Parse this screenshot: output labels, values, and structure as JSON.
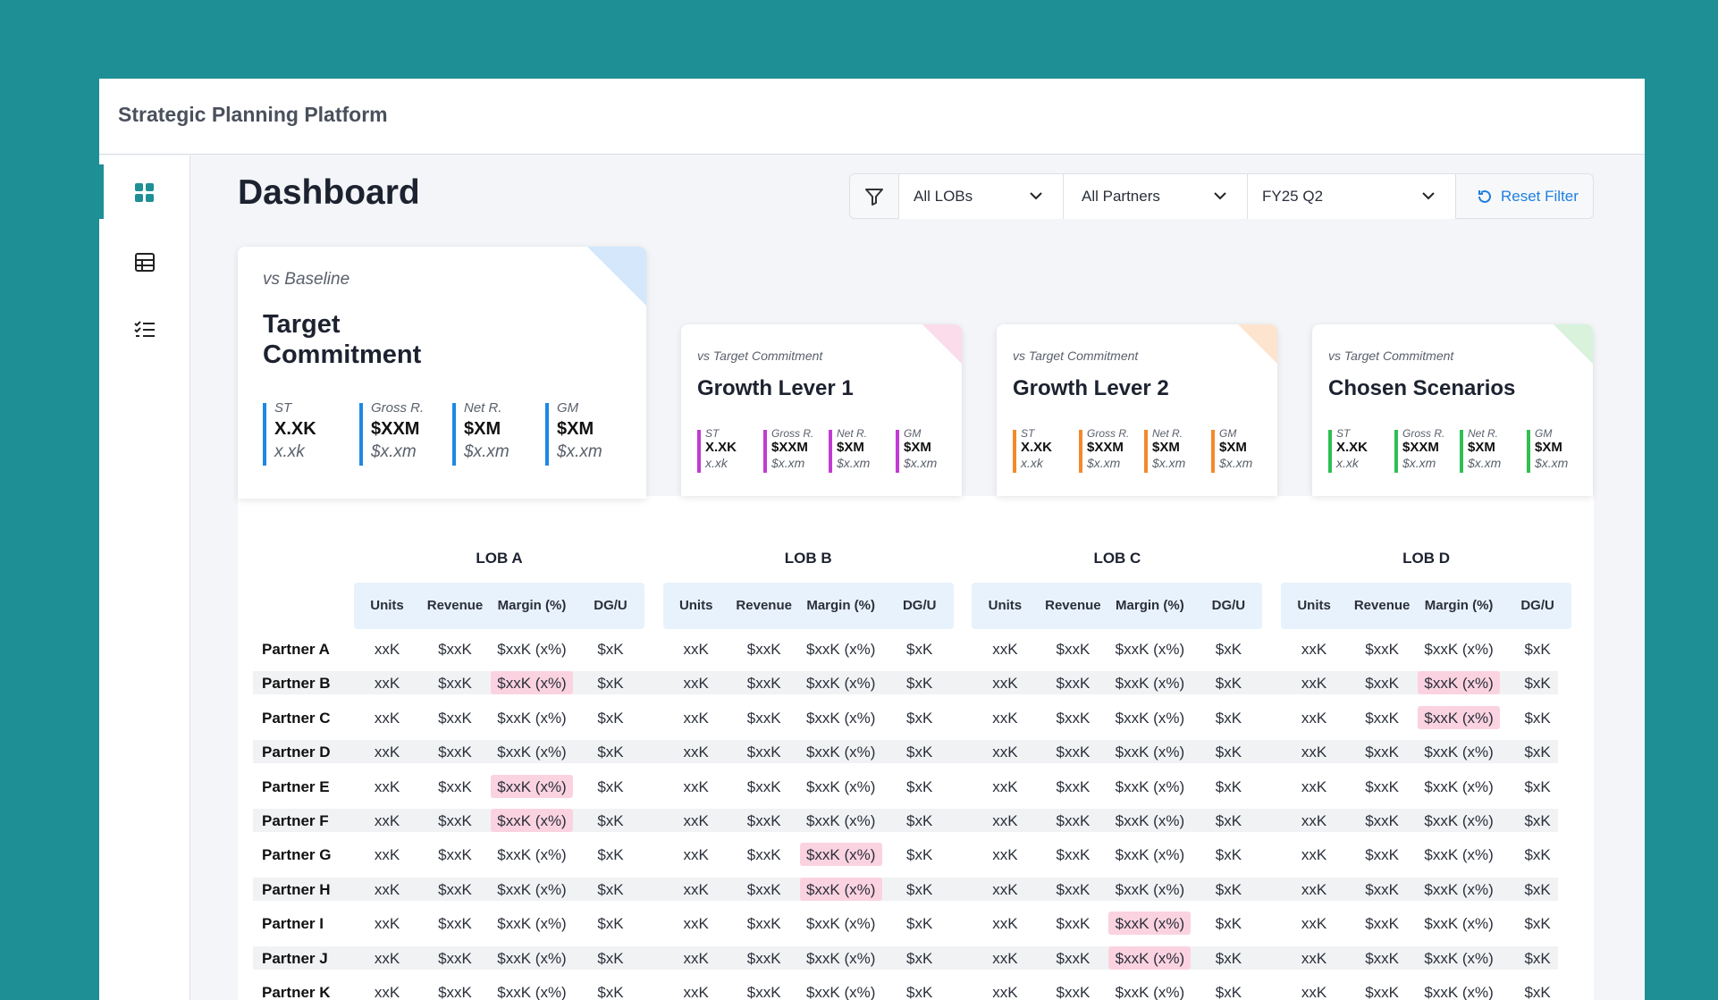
{
  "header": {
    "title": "Strategic Planning Platform"
  },
  "page": {
    "title": "Dashboard"
  },
  "filters": {
    "lob": "All LOBs",
    "partner": "All Partners",
    "period": "FY25 Q2",
    "reset": "Reset Filter"
  },
  "cards": [
    {
      "label": "vs Baseline",
      "title": "Target Commitment",
      "color": "#1e88e5",
      "corner": "#d4e7fb",
      "metrics": [
        {
          "name": "ST",
          "value": "X.XK",
          "sub": "x.xk"
        },
        {
          "name": "Gross R.",
          "value": "$XXM",
          "sub": "$x.xm"
        },
        {
          "name": "Net R.",
          "value": "$XM",
          "sub": "$x.xm"
        },
        {
          "name": "GM",
          "value": "$XM",
          "sub": "$x.xm"
        }
      ]
    },
    {
      "label": "vs Target Commitment",
      "title": "Growth Lever 1",
      "color": "#c23bd4",
      "corner": "#fadcea",
      "metrics": [
        {
          "name": "ST",
          "value": "X.XK",
          "sub": "x.xk"
        },
        {
          "name": "Gross R.",
          "value": "$XXM",
          "sub": "$x.xm"
        },
        {
          "name": "Net R.",
          "value": "$XM",
          "sub": "$x.xm"
        },
        {
          "name": "GM",
          "value": "$XM",
          "sub": "$x.xm"
        }
      ]
    },
    {
      "label": "vs Target Commitment",
      "title": "Growth Lever 2",
      "color": "#f28a2c",
      "corner": "#fde4cf",
      "metrics": [
        {
          "name": "ST",
          "value": "X.XK",
          "sub": "x.xk"
        },
        {
          "name": "Gross R.",
          "value": "$XXM",
          "sub": "$x.xm"
        },
        {
          "name": "Net R.",
          "value": "$XM",
          "sub": "$x.xm"
        },
        {
          "name": "GM",
          "value": "$XM",
          "sub": "$x.xm"
        }
      ]
    },
    {
      "label": "vs Target Commitment",
      "title": "Chosen Scenarios",
      "color": "#2fbf52",
      "corner": "#d8f2dc",
      "metrics": [
        {
          "name": "ST",
          "value": "X.XK",
          "sub": "x.xk"
        },
        {
          "name": "Gross R.",
          "value": "$XXM",
          "sub": "$x.xm"
        },
        {
          "name": "Net R.",
          "value": "$XM",
          "sub": "$x.xm"
        },
        {
          "name": "GM",
          "value": "$XM",
          "sub": "$x.xm"
        }
      ]
    }
  ],
  "table": {
    "groups": [
      "LOB A",
      "LOB B",
      "LOB C",
      "LOB D"
    ],
    "columns": [
      "Units",
      "Revenue",
      "Margin (%)",
      "DG/U"
    ],
    "highlight_color": "#fbd3e0",
    "rows": [
      {
        "partner": "Partner A",
        "highlight": [],
        "cells": [
          "xxK",
          "$xxK",
          "$xxK (x%)",
          "$xK",
          "xxK",
          "$xxK",
          "$xxK (x%)",
          "$xK",
          "xxK",
          "$xxK",
          "$xxK (x%)",
          "$xK",
          "xxK",
          "$xxK",
          "$xxK (x%)",
          "$xK"
        ]
      },
      {
        "partner": "Partner B",
        "highlight": [
          2,
          14
        ],
        "cells": [
          "xxK",
          "$xxK",
          "$xxK (x%)",
          "$xK",
          "xxK",
          "$xxK",
          "$xxK (x%)",
          "$xK",
          "xxK",
          "$xxK",
          "$xxK (x%)",
          "$xK",
          "xxK",
          "$xxK",
          "$xxK (x%)",
          "$xK"
        ]
      },
      {
        "partner": "Partner C",
        "highlight": [
          14
        ],
        "cells": [
          "xxK",
          "$xxK",
          "$xxK (x%)",
          "$xK",
          "xxK",
          "$xxK",
          "$xxK (x%)",
          "$xK",
          "xxK",
          "$xxK",
          "$xxK (x%)",
          "$xK",
          "xxK",
          "$xxK",
          "$xxK (x%)",
          "$xK"
        ]
      },
      {
        "partner": "Partner D",
        "highlight": [],
        "cells": [
          "xxK",
          "$xxK",
          "$xxK (x%)",
          "$xK",
          "xxK",
          "$xxK",
          "$xxK (x%)",
          "$xK",
          "xxK",
          "$xxK",
          "$xxK (x%)",
          "$xK",
          "xxK",
          "$xxK",
          "$xxK (x%)",
          "$xK"
        ]
      },
      {
        "partner": "Partner E",
        "highlight": [
          2
        ],
        "cells": [
          "xxK",
          "$xxK",
          "$xxK (x%)",
          "$xK",
          "xxK",
          "$xxK",
          "$xxK (x%)",
          "$xK",
          "xxK",
          "$xxK",
          "$xxK (x%)",
          "$xK",
          "xxK",
          "$xxK",
          "$xxK (x%)",
          "$xK"
        ]
      },
      {
        "partner": "Partner F",
        "highlight": [
          2
        ],
        "cells": [
          "xxK",
          "$xxK",
          "$xxK (x%)",
          "$xK",
          "xxK",
          "$xxK",
          "$xxK (x%)",
          "$xK",
          "xxK",
          "$xxK",
          "$xxK (x%)",
          "$xK",
          "xxK",
          "$xxK",
          "$xxK (x%)",
          "$xK"
        ]
      },
      {
        "partner": "Partner G",
        "highlight": [
          6
        ],
        "cells": [
          "xxK",
          "$xxK",
          "$xxK (x%)",
          "$xK",
          "xxK",
          "$xxK",
          "$xxK (x%)",
          "$xK",
          "xxK",
          "$xxK",
          "$xxK (x%)",
          "$xK",
          "xxK",
          "$xxK",
          "$xxK (x%)",
          "$xK"
        ]
      },
      {
        "partner": "Partner H",
        "highlight": [
          6
        ],
        "cells": [
          "xxK",
          "$xxK",
          "$xxK (x%)",
          "$xK",
          "xxK",
          "$xxK",
          "$xxK (x%)",
          "$xK",
          "xxK",
          "$xxK",
          "$xxK (x%)",
          "$xK",
          "xxK",
          "$xxK",
          "$xxK (x%)",
          "$xK"
        ]
      },
      {
        "partner": "Partner I",
        "highlight": [
          10
        ],
        "cells": [
          "xxK",
          "$xxK",
          "$xxK (x%)",
          "$xK",
          "xxK",
          "$xxK",
          "$xxK (x%)",
          "$xK",
          "xxK",
          "$xxK",
          "$xxK (x%)",
          "$xK",
          "xxK",
          "$xxK",
          "$xxK (x%)",
          "$xK"
        ]
      },
      {
        "partner": "Partner J",
        "highlight": [
          10
        ],
        "cells": [
          "xxK",
          "$xxK",
          "$xxK (x%)",
          "$xK",
          "xxK",
          "$xxK",
          "$xxK (x%)",
          "$xK",
          "xxK",
          "$xxK",
          "$xxK (x%)",
          "$xK",
          "xxK",
          "$xxK",
          "$xxK (x%)",
          "$xK"
        ]
      },
      {
        "partner": "Partner K",
        "highlight": [],
        "cells": [
          "xxK",
          "$xxK",
          "$xxK (x%)",
          "$xK",
          "xxK",
          "$xxK",
          "$xxK (x%)",
          "$xK",
          "xxK",
          "$xxK",
          "$xxK (x%)",
          "$xK",
          "xxK",
          "$xxK",
          "$xxK (x%)",
          "$xK"
        ]
      }
    ]
  }
}
